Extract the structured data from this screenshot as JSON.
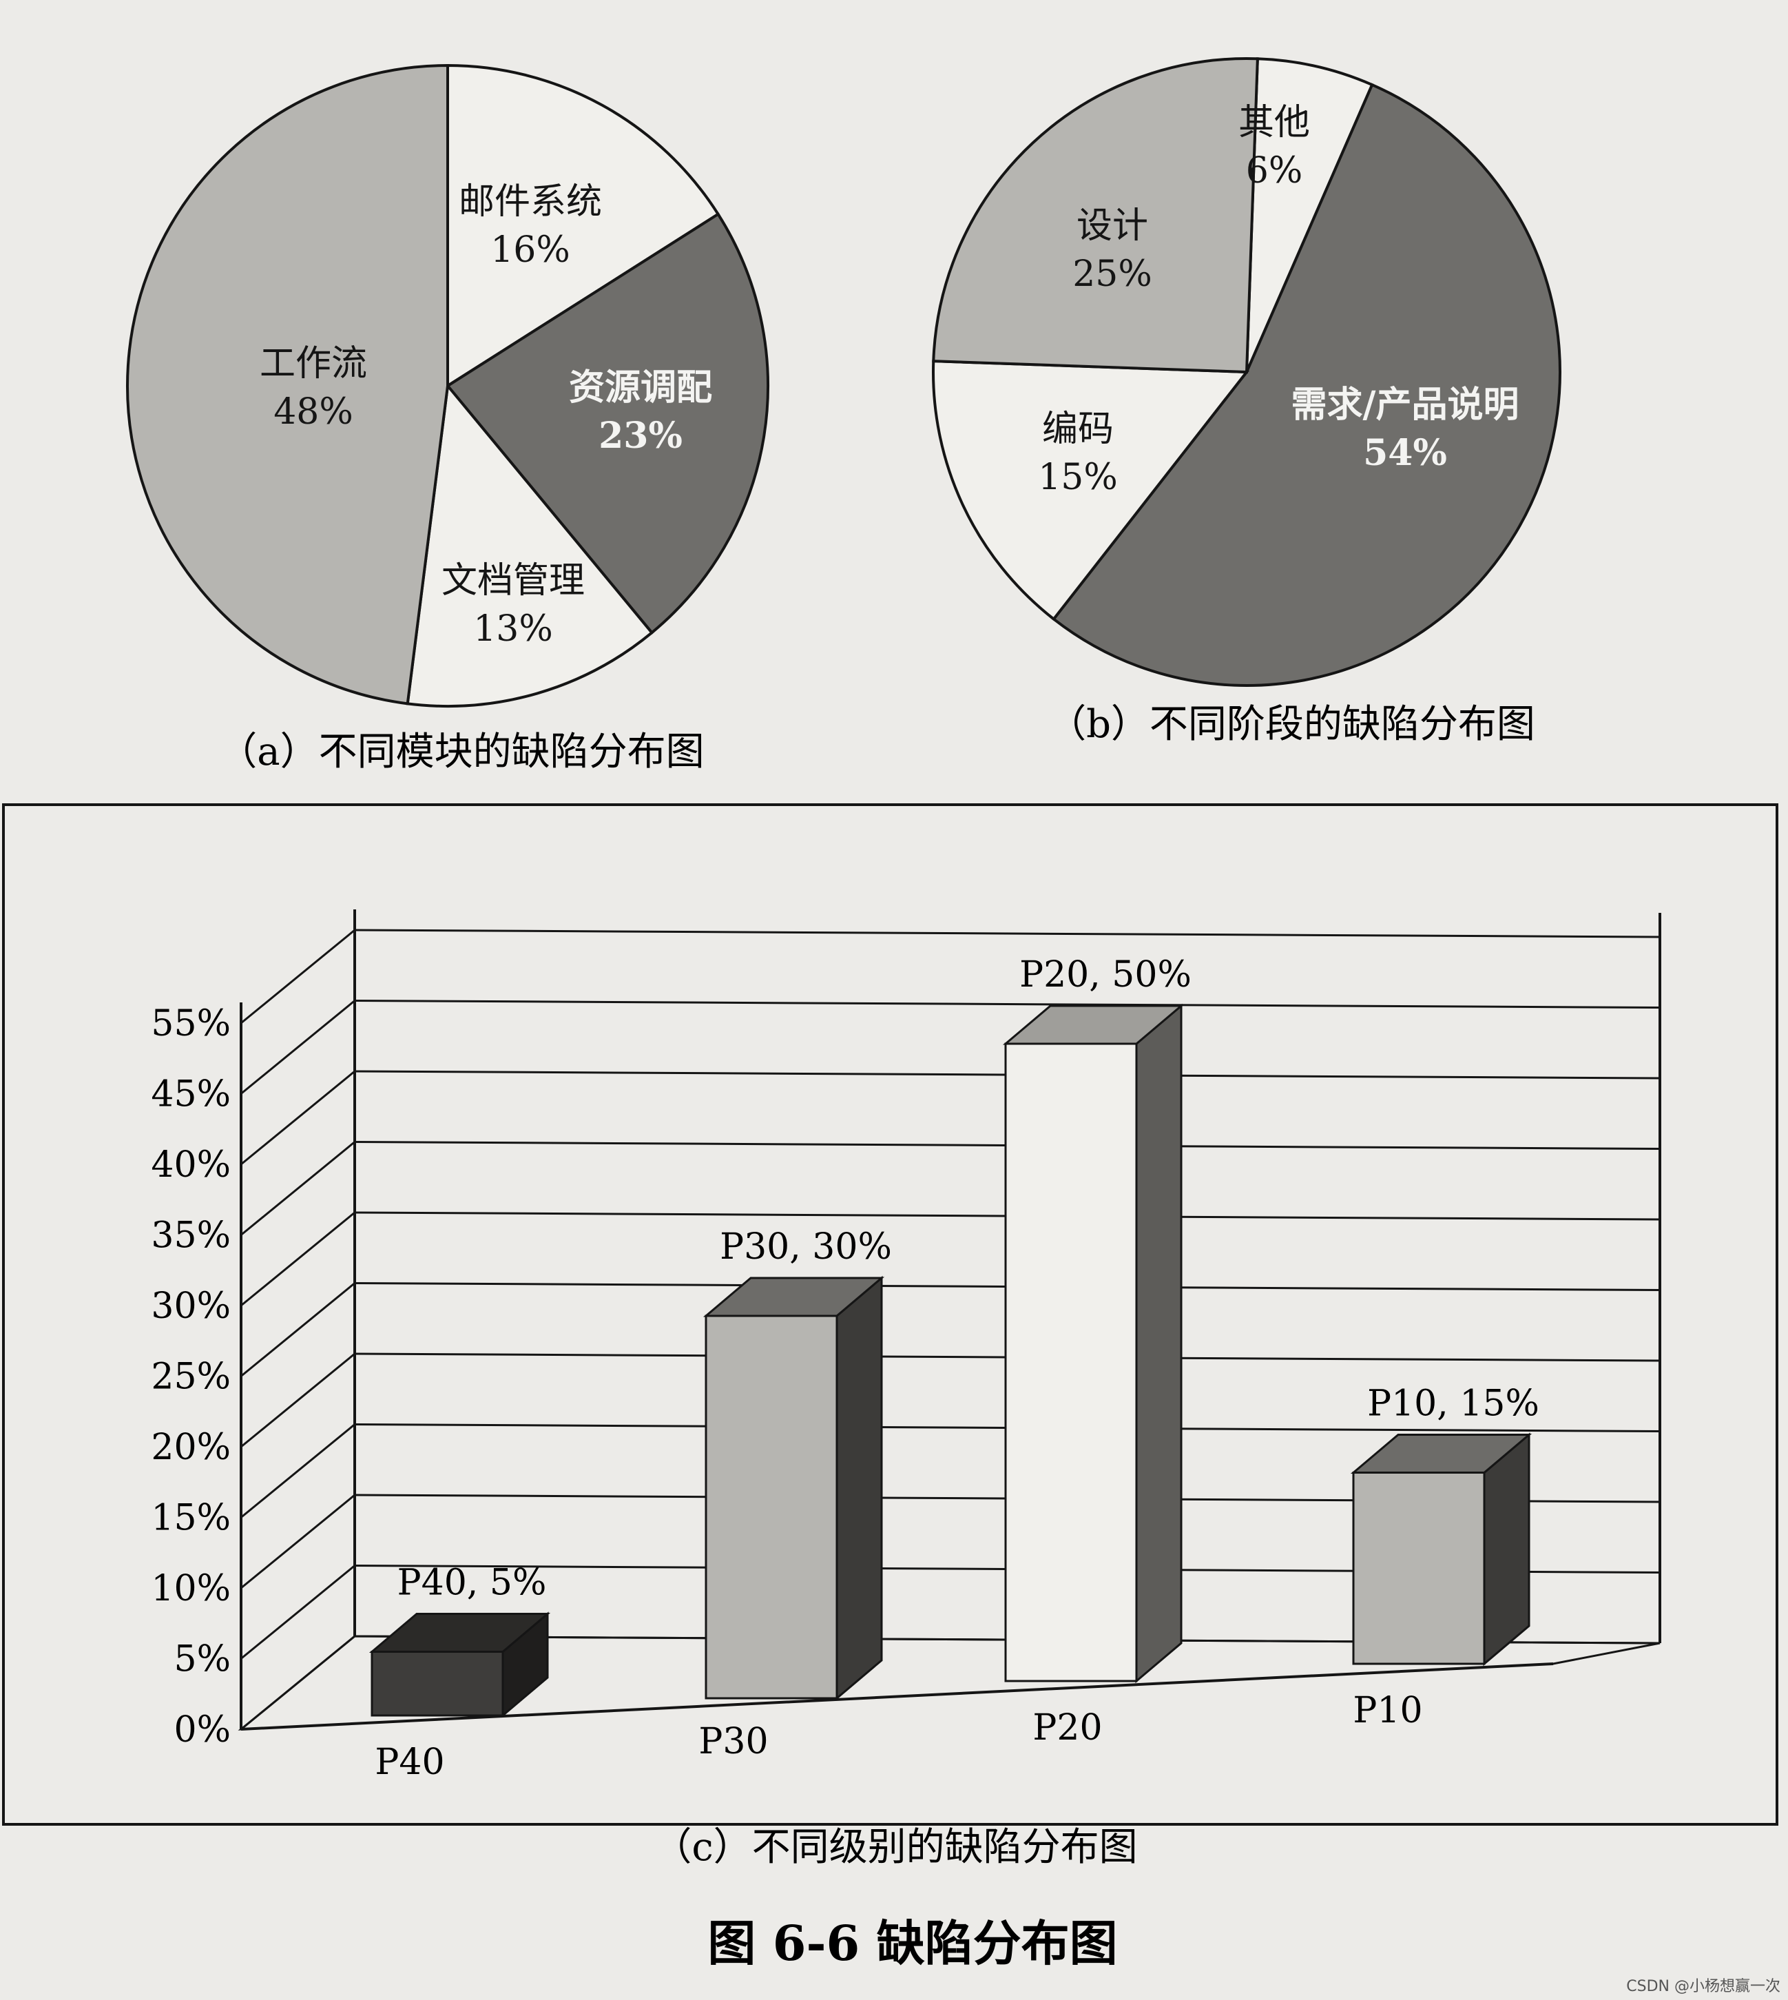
{
  "figure_title": "图 6-6   缺陷分布图",
  "watermark": "CSDN @小杨想赢一次",
  "colors": {
    "light": "#f1f0ec",
    "mid": "#b6b5b1",
    "dark": "#6f6e6b",
    "darkest": "#3e3d3b",
    "ink": "#151515",
    "paper": "#ecebe8"
  },
  "chart_data": [
    {
      "type": "pie",
      "caption": "（a）不同模块的缺陷分布图",
      "slices": [
        {
          "name": "邮件系统",
          "value": 16,
          "label": "16%",
          "shade": "light"
        },
        {
          "name": "资源调配",
          "value": 23,
          "label": "23%",
          "shade": "dark"
        },
        {
          "name": "文档管理",
          "value": 13,
          "label": "13%",
          "shade": "light"
        },
        {
          "name": "工作流",
          "value": 48,
          "label": "48%",
          "shade": "mid"
        }
      ]
    },
    {
      "type": "pie",
      "caption": "（b）不同阶段的缺陷分布图",
      "slices": [
        {
          "name": "其他",
          "value": 6,
          "label": "6%",
          "shade": "light"
        },
        {
          "name": "需求/产品说明",
          "value": 54,
          "label": "54%",
          "shade": "dark"
        },
        {
          "name": "编码",
          "value": 15,
          "label": "15%",
          "shade": "light"
        },
        {
          "name": "设计",
          "value": 25,
          "label": "25%",
          "shade": "mid"
        }
      ]
    },
    {
      "type": "bar",
      "caption": "（c）不同级别的缺陷分布图",
      "categories": [
        "P40",
        "P30",
        "P20",
        "P10"
      ],
      "values": [
        5,
        30,
        50,
        15
      ],
      "data_labels": [
        "P40, 5%",
        "P30, 30%",
        "P20, 50%",
        "P10, 15%"
      ],
      "shades": [
        "darkest",
        "mid",
        "light",
        "mid"
      ],
      "y_ticks": [
        "0%",
        "5%",
        "10%",
        "15%",
        "20%",
        "25%",
        "30%",
        "35%",
        "40%",
        "45%",
        "55%"
      ],
      "grid": true,
      "style": "3d"
    }
  ]
}
